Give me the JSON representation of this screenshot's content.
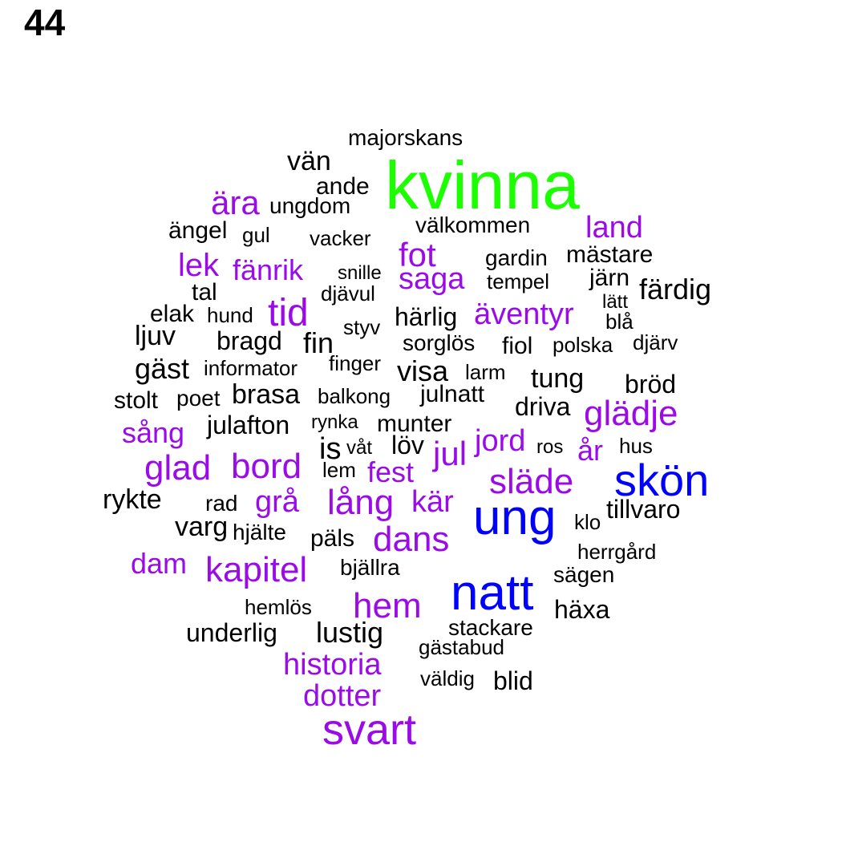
{
  "chart_data": {
    "type": "wordcloud",
    "title": "44",
    "colors": {
      "black": "#000000",
      "purple": "#9a0be8",
      "blue": "#0000ff",
      "green": "#1bff00"
    },
    "words": [
      {
        "text": "kvinna",
        "color": "green"
      },
      {
        "text": "ung",
        "color": "blue"
      },
      {
        "text": "natt",
        "color": "blue"
      },
      {
        "text": "skön",
        "color": "blue"
      },
      {
        "text": "svart",
        "color": "purple"
      },
      {
        "text": "tid",
        "color": "purple"
      },
      {
        "text": "hem",
        "color": "purple"
      },
      {
        "text": "dans",
        "color": "purple"
      },
      {
        "text": "släde",
        "color": "purple"
      },
      {
        "text": "glädje",
        "color": "purple"
      },
      {
        "text": "lång",
        "color": "purple"
      },
      {
        "text": "bord",
        "color": "purple"
      },
      {
        "text": "glad",
        "color": "purple"
      },
      {
        "text": "kapitel",
        "color": "purple"
      },
      {
        "text": "ära",
        "color": "purple"
      },
      {
        "text": "fot",
        "color": "purple"
      },
      {
        "text": "land",
        "color": "purple"
      },
      {
        "text": "lek",
        "color": "purple"
      },
      {
        "text": "fänrik",
        "color": "purple"
      },
      {
        "text": "saga",
        "color": "purple"
      },
      {
        "text": "äventyr",
        "color": "purple"
      },
      {
        "text": "historia",
        "color": "purple"
      },
      {
        "text": "dotter",
        "color": "purple"
      },
      {
        "text": "jul",
        "color": "purple"
      },
      {
        "text": "jord",
        "color": "purple"
      },
      {
        "text": "kär",
        "color": "purple"
      },
      {
        "text": "grå",
        "color": "purple"
      },
      {
        "text": "fest",
        "color": "purple"
      },
      {
        "text": "sång",
        "color": "purple"
      },
      {
        "text": "dam",
        "color": "purple"
      },
      {
        "text": "år",
        "color": "purple"
      },
      {
        "text": "vän",
        "color": "black"
      },
      {
        "text": "majorskans",
        "color": "black"
      },
      {
        "text": "ande",
        "color": "black"
      },
      {
        "text": "ungdom",
        "color": "black"
      },
      {
        "text": "välkommen",
        "color": "black"
      },
      {
        "text": "ängel",
        "color": "black"
      },
      {
        "text": "gul",
        "color": "black"
      },
      {
        "text": "vacker",
        "color": "black"
      },
      {
        "text": "gardin",
        "color": "black"
      },
      {
        "text": "mästare",
        "color": "black"
      },
      {
        "text": "snille",
        "color": "black"
      },
      {
        "text": "tempel",
        "color": "black"
      },
      {
        "text": "järn",
        "color": "black"
      },
      {
        "text": "färdig",
        "color": "black"
      },
      {
        "text": "tal",
        "color": "black"
      },
      {
        "text": "djävul",
        "color": "black"
      },
      {
        "text": "lätt",
        "color": "black"
      },
      {
        "text": "elak",
        "color": "black"
      },
      {
        "text": "hund",
        "color": "black"
      },
      {
        "text": "härlig",
        "color": "black"
      },
      {
        "text": "blå",
        "color": "black"
      },
      {
        "text": "ljuv",
        "color": "black"
      },
      {
        "text": "styv",
        "color": "black"
      },
      {
        "text": "bragd",
        "color": "black"
      },
      {
        "text": "fin",
        "color": "black"
      },
      {
        "text": "sorglös",
        "color": "black"
      },
      {
        "text": "fiol",
        "color": "black"
      },
      {
        "text": "polska",
        "color": "black"
      },
      {
        "text": "djärv",
        "color": "black"
      },
      {
        "text": "gäst",
        "color": "black"
      },
      {
        "text": "informator",
        "color": "black"
      },
      {
        "text": "finger",
        "color": "black"
      },
      {
        "text": "visa",
        "color": "black"
      },
      {
        "text": "larm",
        "color": "black"
      },
      {
        "text": "tung",
        "color": "black"
      },
      {
        "text": "bröd",
        "color": "black"
      },
      {
        "text": "stolt",
        "color": "black"
      },
      {
        "text": "poet",
        "color": "black"
      },
      {
        "text": "brasa",
        "color": "black"
      },
      {
        "text": "balkong",
        "color": "black"
      },
      {
        "text": "julnatt",
        "color": "black"
      },
      {
        "text": "driva",
        "color": "black"
      },
      {
        "text": "julafton",
        "color": "black"
      },
      {
        "text": "rynka",
        "color": "black"
      },
      {
        "text": "munter",
        "color": "black"
      },
      {
        "text": "is",
        "color": "black"
      },
      {
        "text": "våt",
        "color": "black"
      },
      {
        "text": "löv",
        "color": "black"
      },
      {
        "text": "ros",
        "color": "black"
      },
      {
        "text": "hus",
        "color": "black"
      },
      {
        "text": "lem",
        "color": "black"
      },
      {
        "text": "rykte",
        "color": "black"
      },
      {
        "text": "rad",
        "color": "black"
      },
      {
        "text": "tillvaro",
        "color": "black"
      },
      {
        "text": "klo",
        "color": "black"
      },
      {
        "text": "varg",
        "color": "black"
      },
      {
        "text": "hjälte",
        "color": "black"
      },
      {
        "text": "päls",
        "color": "black"
      },
      {
        "text": "herrgård",
        "color": "black"
      },
      {
        "text": "bjällra",
        "color": "black"
      },
      {
        "text": "sägen",
        "color": "black"
      },
      {
        "text": "hemlös",
        "color": "black"
      },
      {
        "text": "häxa",
        "color": "black"
      },
      {
        "text": "underlig",
        "color": "black"
      },
      {
        "text": "lustig",
        "color": "black"
      },
      {
        "text": "stackare",
        "color": "black"
      },
      {
        "text": "gästabud",
        "color": "black"
      },
      {
        "text": "väldig",
        "color": "black"
      },
      {
        "text": "blid",
        "color": "black"
      }
    ]
  }
}
